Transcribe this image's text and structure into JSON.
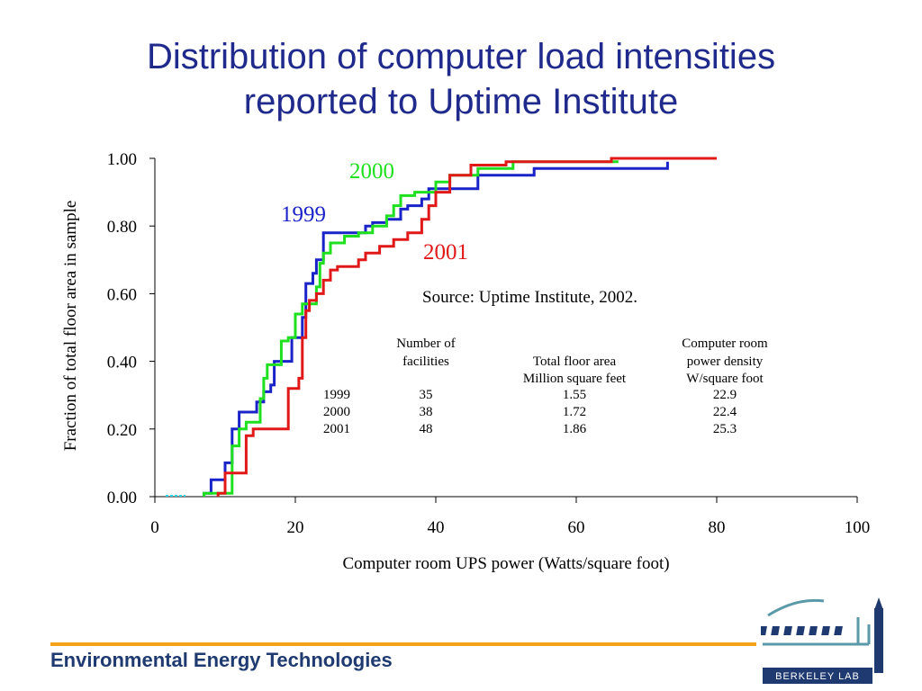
{
  "slide": {
    "title_line1": "Distribution of computer load intensities",
    "title_line2": "reported to Uptime Institute",
    "footer": "Environmental Energy Technologies",
    "logo_text": "BERKELEY LAB"
  },
  "chart_data": {
    "type": "line",
    "xlabel": "Computer room UPS power (Watts/square foot)",
    "ylabel": "Fraction of total floor area in sample",
    "xlim": [
      0,
      100
    ],
    "ylim": [
      0,
      1
    ],
    "xticks": [
      0,
      20,
      40,
      60,
      80,
      100
    ],
    "xtick_labels": [
      "0",
      "20",
      "40",
      "60",
      "80",
      "100"
    ],
    "yticks": [
      0,
      0.2,
      0.4,
      0.6,
      0.8,
      1.0
    ],
    "ytick_labels": [
      "0.00",
      "0.20",
      "0.40",
      "0.60",
      "0.80",
      "1.00"
    ],
    "grid": false,
    "source_note": "Source:  Uptime Institute, 2002.",
    "series": [
      {
        "name": "1999",
        "color": "#1a23c8",
        "points": [
          [
            7,
            0
          ],
          [
            7,
            0.01
          ],
          [
            8,
            0.01
          ],
          [
            8,
            0.05
          ],
          [
            10,
            0.05
          ],
          [
            10,
            0.1
          ],
          [
            11,
            0.1
          ],
          [
            11,
            0.2
          ],
          [
            12,
            0.2
          ],
          [
            12,
            0.25
          ],
          [
            14.5,
            0.25
          ],
          [
            14.5,
            0.28
          ],
          [
            15.5,
            0.28
          ],
          [
            15.5,
            0.31
          ],
          [
            16.5,
            0.31
          ],
          [
            16.5,
            0.33
          ],
          [
            17,
            0.33
          ],
          [
            17,
            0.4
          ],
          [
            19.5,
            0.4
          ],
          [
            19.5,
            0.47
          ],
          [
            21,
            0.47
          ],
          [
            21,
            0.53
          ],
          [
            21.5,
            0.53
          ],
          [
            21.5,
            0.63
          ],
          [
            22.5,
            0.63
          ],
          [
            22.5,
            0.66
          ],
          [
            23,
            0.66
          ],
          [
            23,
            0.7
          ],
          [
            24,
            0.7
          ],
          [
            24,
            0.78
          ],
          [
            30,
            0.78
          ],
          [
            30,
            0.8
          ],
          [
            31,
            0.8
          ],
          [
            31,
            0.81
          ],
          [
            33,
            0.81
          ],
          [
            33,
            0.82
          ],
          [
            35,
            0.82
          ],
          [
            35,
            0.85
          ],
          [
            36,
            0.85
          ],
          [
            36,
            0.86
          ],
          [
            38,
            0.86
          ],
          [
            38,
            0.88
          ],
          [
            39,
            0.88
          ],
          [
            39,
            0.91
          ],
          [
            46,
            0.91
          ],
          [
            46,
            0.95
          ],
          [
            54,
            0.95
          ],
          [
            54,
            0.97
          ],
          [
            73,
            0.97
          ],
          [
            73,
            0.99
          ]
        ]
      },
      {
        "name": "2000",
        "color": "#1fe01f",
        "points": [
          [
            7,
            0
          ],
          [
            7,
            0.01
          ],
          [
            11,
            0.01
          ],
          [
            11,
            0.15
          ],
          [
            12,
            0.15
          ],
          [
            12,
            0.2
          ],
          [
            13,
            0.2
          ],
          [
            13,
            0.22
          ],
          [
            15,
            0.22
          ],
          [
            15,
            0.29
          ],
          [
            15.5,
            0.29
          ],
          [
            15.5,
            0.35
          ],
          [
            16,
            0.35
          ],
          [
            16,
            0.39
          ],
          [
            18,
            0.39
          ],
          [
            18,
            0.46
          ],
          [
            19,
            0.46
          ],
          [
            19,
            0.47
          ],
          [
            20,
            0.47
          ],
          [
            20,
            0.54
          ],
          [
            21,
            0.54
          ],
          [
            21,
            0.57
          ],
          [
            23,
            0.57
          ],
          [
            23,
            0.62
          ],
          [
            23.5,
            0.62
          ],
          [
            23.5,
            0.69
          ],
          [
            24,
            0.69
          ],
          [
            24,
            0.72
          ],
          [
            25,
            0.72
          ],
          [
            25,
            0.75
          ],
          [
            27,
            0.75
          ],
          [
            27,
            0.77
          ],
          [
            29,
            0.77
          ],
          [
            29,
            0.78
          ],
          [
            31,
            0.78
          ],
          [
            31,
            0.8
          ],
          [
            33,
            0.8
          ],
          [
            33,
            0.83
          ],
          [
            34,
            0.83
          ],
          [
            34,
            0.86
          ],
          [
            35,
            0.86
          ],
          [
            35,
            0.89
          ],
          [
            37,
            0.89
          ],
          [
            37,
            0.9
          ],
          [
            40,
            0.9
          ],
          [
            40,
            0.93
          ],
          [
            42,
            0.93
          ],
          [
            42,
            0.95
          ],
          [
            46,
            0.95
          ],
          [
            46,
            0.97
          ],
          [
            51,
            0.97
          ],
          [
            51,
            0.99
          ],
          [
            66,
            0.99
          ]
        ]
      },
      {
        "name": "2001",
        "color": "#e01818",
        "points": [
          [
            9,
            0
          ],
          [
            9,
            0.01
          ],
          [
            10,
            0.01
          ],
          [
            10,
            0.07
          ],
          [
            13,
            0.07
          ],
          [
            13,
            0.18
          ],
          [
            14,
            0.18
          ],
          [
            14,
            0.2
          ],
          [
            19,
            0.2
          ],
          [
            19,
            0.32
          ],
          [
            20.5,
            0.32
          ],
          [
            20.5,
            0.35
          ],
          [
            21,
            0.35
          ],
          [
            21,
            0.47
          ],
          [
            21.5,
            0.47
          ],
          [
            21.5,
            0.55
          ],
          [
            22,
            0.55
          ],
          [
            22,
            0.58
          ],
          [
            23,
            0.58
          ],
          [
            23,
            0.6
          ],
          [
            24,
            0.6
          ],
          [
            24,
            0.64
          ],
          [
            25,
            0.64
          ],
          [
            25,
            0.67
          ],
          [
            26,
            0.67
          ],
          [
            26,
            0.68
          ],
          [
            29,
            0.68
          ],
          [
            29,
            0.7
          ],
          [
            30,
            0.7
          ],
          [
            30,
            0.72
          ],
          [
            32,
            0.72
          ],
          [
            32,
            0.74
          ],
          [
            34,
            0.74
          ],
          [
            34,
            0.76
          ],
          [
            36,
            0.76
          ],
          [
            36,
            0.78
          ],
          [
            38,
            0.78
          ],
          [
            38,
            0.82
          ],
          [
            39,
            0.82
          ],
          [
            39,
            0.86
          ],
          [
            40,
            0.86
          ],
          [
            40,
            0.9
          ],
          [
            42,
            0.9
          ],
          [
            42,
            0.95
          ],
          [
            45,
            0.95
          ],
          [
            45,
            0.98
          ],
          [
            50,
            0.98
          ],
          [
            50,
            0.99
          ],
          [
            65,
            0.99
          ],
          [
            65,
            1.0
          ],
          [
            80,
            1.0
          ]
        ]
      }
    ],
    "table": {
      "headers": [
        [
          "",
          "Number of",
          "",
          "Computer room"
        ],
        [
          "",
          "facilities",
          "Total floor area",
          "power density"
        ],
        [
          "",
          "",
          "Million square feet",
          "W/square foot"
        ]
      ],
      "rows": [
        [
          "1999",
          "35",
          "1.55",
          "22.9"
        ],
        [
          "2000",
          "38",
          "1.72",
          "22.4"
        ],
        [
          "2001",
          "48",
          "1.86",
          "25.3"
        ]
      ]
    }
  }
}
